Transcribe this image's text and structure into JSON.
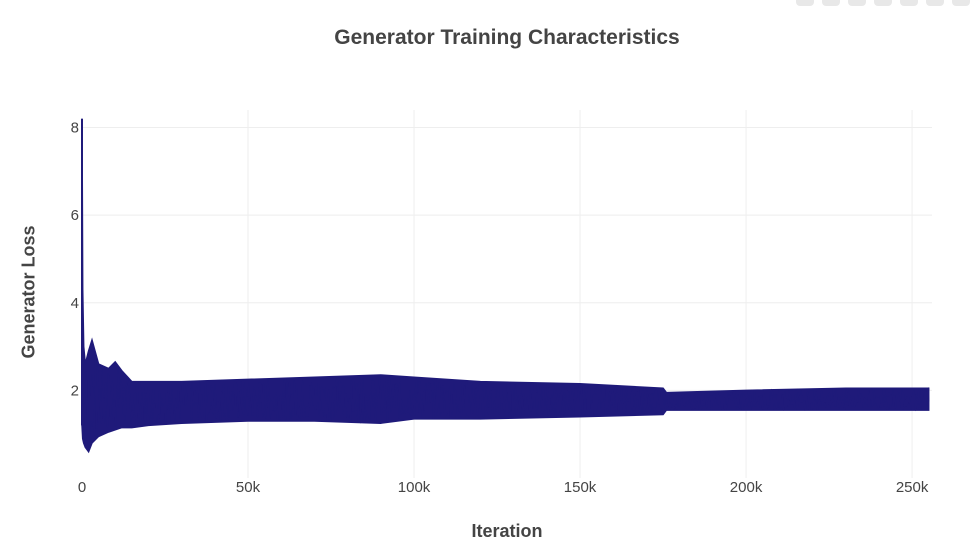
{
  "chart_data": {
    "type": "line",
    "title": "Generator Training Characteristics",
    "xlabel": "Iteration",
    "ylabel": "Generator Loss",
    "xlim": [
      0,
      256000
    ],
    "ylim": [
      0,
      8.4
    ],
    "x_ticks": [
      {
        "value": 0,
        "label": "0"
      },
      {
        "value": 50000,
        "label": "50k"
      },
      {
        "value": 100000,
        "label": "100k"
      },
      {
        "value": 150000,
        "label": "150k"
      },
      {
        "value": 200000,
        "label": "200k"
      },
      {
        "value": 250000,
        "label": "250k"
      }
    ],
    "y_ticks": [
      {
        "value": 2,
        "label": "2"
      },
      {
        "value": 4,
        "label": "4"
      },
      {
        "value": 6,
        "label": "6"
      },
      {
        "value": 8,
        "label": "8"
      }
    ],
    "grid": true,
    "legend": "none",
    "color": "#1f1a7a",
    "series": [
      {
        "x": [
          0,
          200,
          500,
          1000,
          2000,
          3000,
          5000,
          8000,
          10000,
          12000,
          15000,
          20000,
          30000,
          50000,
          70000,
          90000,
          100000,
          120000,
          150000,
          175000,
          176000,
          200000,
          230000,
          255000
        ],
        "y_max": [
          8.2,
          4.3,
          3.0,
          2.6,
          2.9,
          3.15,
          2.6,
          2.5,
          2.65,
          2.45,
          2.2,
          2.2,
          2.2,
          2.25,
          2.3,
          2.35,
          2.3,
          2.2,
          2.15,
          2.05,
          1.95,
          2.0,
          2.05,
          2.05
        ],
        "y_min": [
          1.2,
          0.9,
          0.8,
          0.7,
          0.6,
          0.8,
          0.95,
          1.05,
          1.1,
          1.15,
          1.15,
          1.2,
          1.25,
          1.3,
          1.3,
          1.25,
          1.35,
          1.35,
          1.4,
          1.45,
          1.55,
          1.55,
          1.55,
          1.55
        ]
      }
    ]
  }
}
